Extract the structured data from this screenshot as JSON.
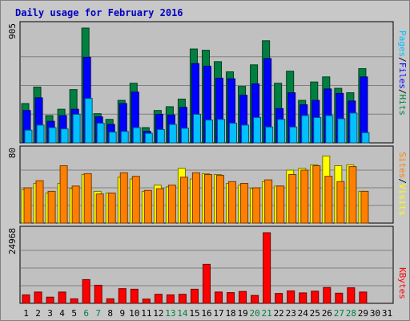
{
  "title": "Daily usage for February 2016",
  "colors": {
    "title": "#0000c0",
    "pages": "#00c0ff",
    "files": "#0000ff",
    "hits": "#008040",
    "visits": "#ffff00",
    "sites": "#ff8000",
    "kbytes": "#ff0000",
    "weekend": "#008040",
    "weekday": "#000000",
    "panel_bg": "#c0c0c0"
  },
  "labels": {
    "pages": "Pages",
    "files": "Files",
    "hits": "Hits",
    "visits": "Visits",
    "sites": "Sites",
    "kbytes": "KBytes",
    "sep": "/"
  },
  "chart_data": [
    {
      "type": "bar",
      "panel": "hits-files-pages",
      "ymax_label": "905",
      "ylim": [
        0,
        905
      ],
      "x": [
        1,
        2,
        3,
        4,
        5,
        6,
        7,
        8,
        9,
        10,
        11,
        12,
        13,
        14,
        15,
        16,
        17,
        18,
        19,
        20,
        21,
        22,
        23,
        24,
        25,
        26,
        27,
        28,
        29,
        30,
        31
      ],
      "weekend_days": [
        6,
        7,
        13,
        14,
        20,
        21,
        27,
        28
      ],
      "series": [
        {
          "name": "Hits",
          "values": [
            310,
            440,
            215,
            265,
            420,
            905,
            230,
            185,
            335,
            470,
            120,
            255,
            285,
            345,
            740,
            730,
            640,
            560,
            445,
            615,
            805,
            470,
            565,
            335,
            480,
            520,
            430,
            395,
            585,
            0,
            0
          ]
        },
        {
          "name": "Files",
          "values": [
            255,
            355,
            170,
            215,
            265,
            675,
            205,
            145,
            310,
            400,
            90,
            225,
            220,
            280,
            625,
            605,
            510,
            505,
            375,
            465,
            665,
            270,
            395,
            300,
            335,
            425,
            390,
            330,
            520,
            0,
            0
          ]
        },
        {
          "name": "Pages",
          "values": [
            100,
            140,
            120,
            110,
            225,
            350,
            155,
            85,
            90,
            120,
            75,
            105,
            145,
            115,
            225,
            180,
            185,
            155,
            140,
            200,
            125,
            185,
            125,
            215,
            200,
            215,
            190,
            235,
            80,
            0,
            0
          ]
        }
      ]
    },
    {
      "type": "bar",
      "panel": "visits-sites",
      "ymax_label": "80",
      "ylim": [
        0,
        80
      ],
      "x": [
        1,
        2,
        3,
        4,
        5,
        6,
        7,
        8,
        9,
        10,
        11,
        12,
        13,
        14,
        15,
        16,
        17,
        18,
        19,
        20,
        21,
        22,
        23,
        24,
        25,
        26,
        27,
        28,
        29,
        30,
        31
      ],
      "series": [
        {
          "name": "Visits",
          "values": [
            38,
            45,
            34,
            45,
            39,
            55,
            36,
            34,
            52,
            50,
            36,
            43,
            41,
            62,
            50,
            56,
            55,
            45,
            43,
            39,
            47,
            42,
            60,
            62,
            66,
            76,
            65,
            66,
            36,
            0,
            0
          ]
        },
        {
          "name": "Sites",
          "values": [
            40,
            48,
            36,
            65,
            42,
            56,
            33,
            34,
            57,
            53,
            37,
            39,
            43,
            52,
            57,
            55,
            54,
            47,
            45,
            40,
            49,
            42,
            55,
            60,
            65,
            53,
            47,
            64,
            36,
            0,
            0
          ]
        }
      ]
    },
    {
      "type": "bar",
      "panel": "kbytes",
      "ymax_label": "24968",
      "ylim": [
        0,
        24968
      ],
      "x": [
        1,
        2,
        3,
        4,
        5,
        6,
        7,
        8,
        9,
        10,
        11,
        12,
        13,
        14,
        15,
        16,
        17,
        18,
        19,
        20,
        21,
        22,
        23,
        24,
        25,
        26,
        27,
        28,
        29,
        30,
        31
      ],
      "series": [
        {
          "name": "KBytes",
          "values": [
            3000,
            4000,
            2200,
            4000,
            1600,
            8400,
            6400,
            1600,
            5200,
            5000,
            1500,
            3200,
            3000,
            3200,
            5000,
            13800,
            4000,
            3800,
            4200,
            2800,
            24968,
            3500,
            4400,
            3700,
            4300,
            5600,
            3600,
            5500,
            4000,
            0,
            0
          ]
        }
      ]
    }
  ]
}
